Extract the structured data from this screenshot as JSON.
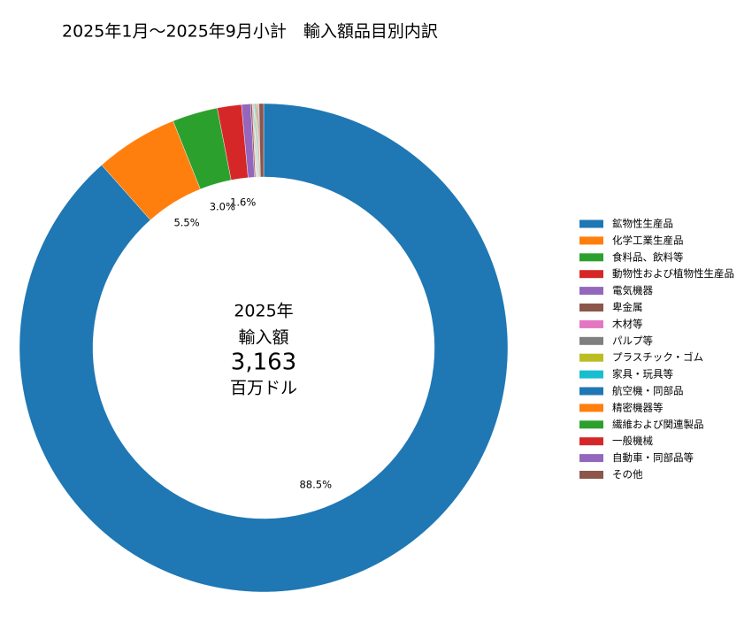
{
  "chart_data": {
    "type": "donut",
    "title": "2025年1月～2025年9月小計　輸入額品目別内訳",
    "center_text": {
      "year": "2025年",
      "label": "輸入額",
      "total": {
        "value": 3163,
        "label": "3,163"
      },
      "unit": "百万ドル"
    },
    "categories": [
      "鉱物性生産品",
      "化学工業生産品",
      "食料品、飲料等",
      "動物性および植物性生産品",
      "電気機器",
      "卑金属",
      "木材等",
      "パルプ等",
      "プラスチック・ゴム",
      "家具・玩具等",
      "航空機・同部品",
      "精密機器等",
      "繊維および関連製品",
      "一般機械",
      "自動車・同部品等",
      "その他"
    ],
    "values": [
      88.5,
      5.5,
      3.0,
      1.6,
      0.6,
      0.1,
      0.05,
      0.05,
      0.05,
      0.05,
      0.05,
      0.05,
      0.05,
      0.05,
      0.05,
      0.3
    ],
    "value_labels": [
      "88.5%",
      "5.5%",
      "3.0%",
      "1.6%",
      null,
      null,
      null,
      null,
      null,
      null,
      null,
      null,
      null,
      null,
      null,
      null
    ],
    "colors": [
      "#1f77b4",
      "#ff7f0e",
      "#2ca02c",
      "#d62728",
      "#9467bd",
      "#8c564b",
      "#e377c2",
      "#7f7f7f",
      "#bcbd22",
      "#17becf",
      "#1f77b4",
      "#ff7f0e",
      "#2ca02c",
      "#d62728",
      "#9467bd",
      "#8c564b"
    ],
    "legend": "right"
  }
}
